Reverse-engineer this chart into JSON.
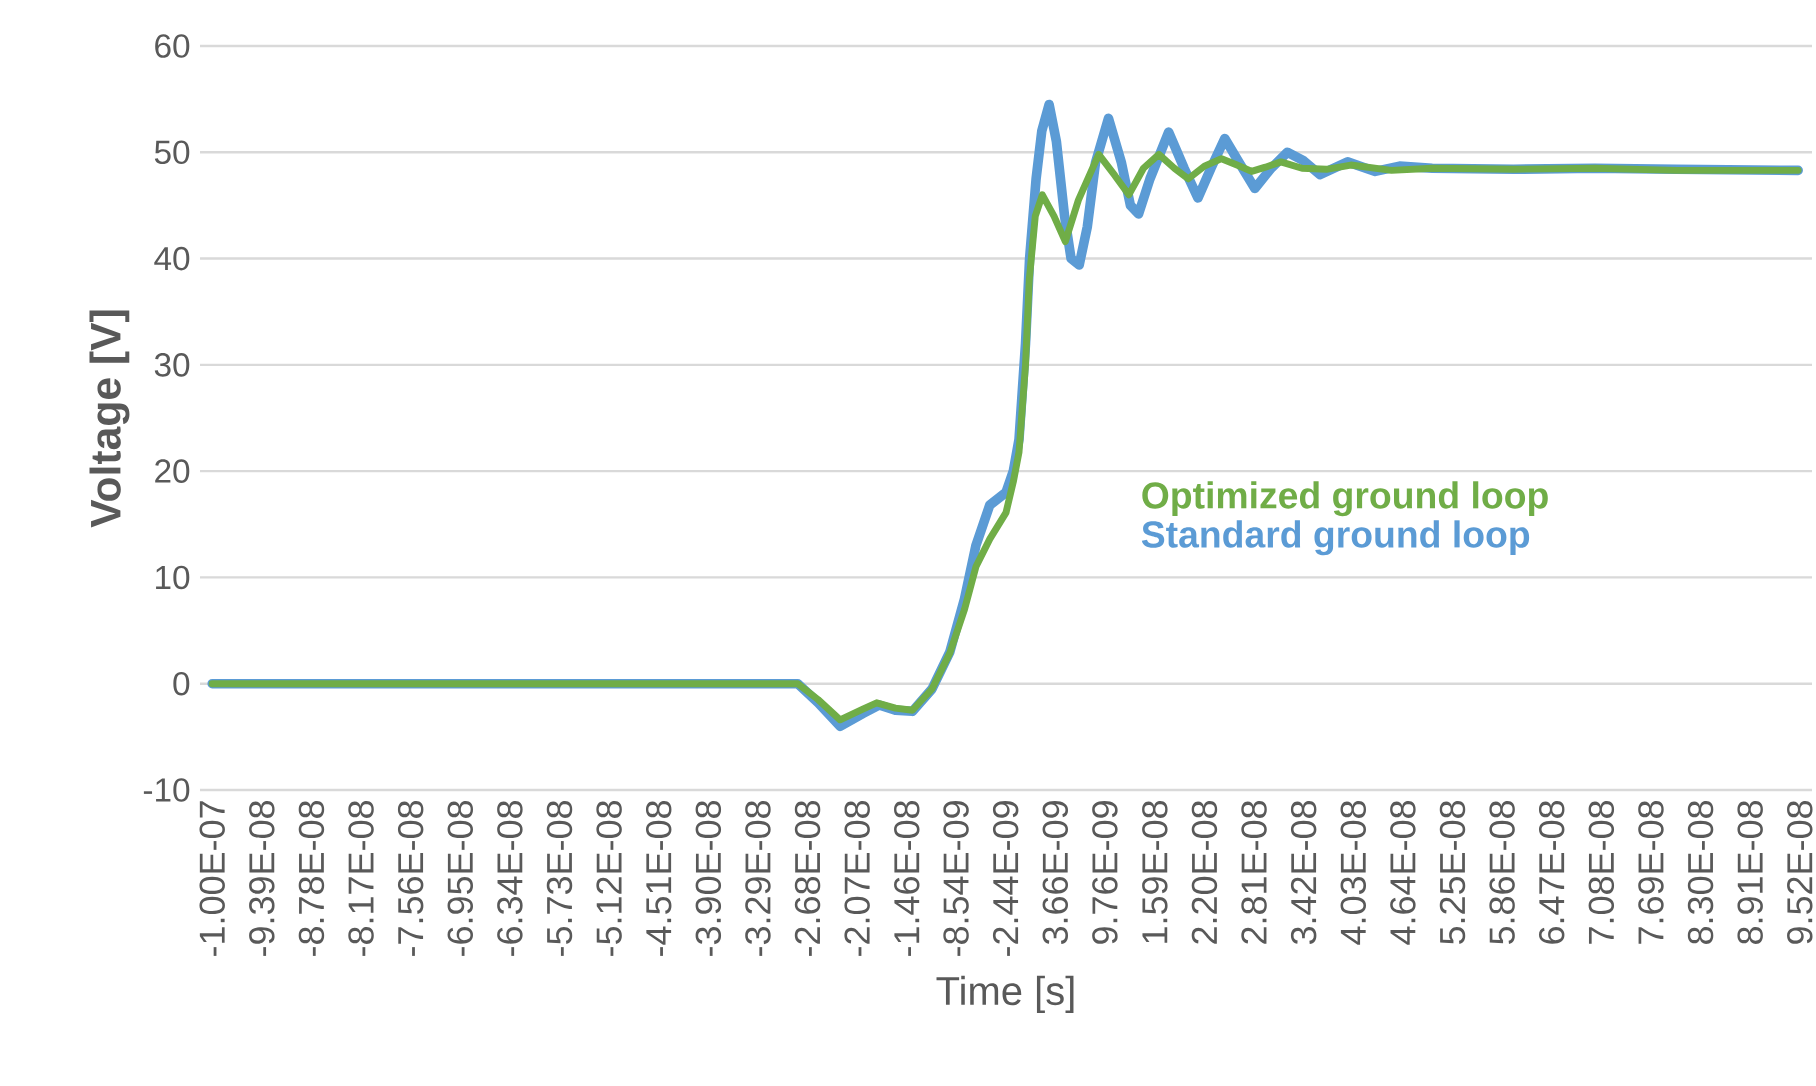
{
  "chart_data": {
    "type": "line",
    "xlabel": "Time [s]",
    "ylabel": "Voltage [V]",
    "xlim": [
      -1.015e-07,
      9.67e-08
    ],
    "ylim": [
      -10,
      60
    ],
    "yticks": [
      -10,
      0,
      10,
      20,
      30,
      40,
      50,
      60
    ],
    "xticks": [
      {
        "value": -1e-07,
        "label": "-1.00E-07"
      },
      {
        "value": -9.39e-08,
        "label": "-9.39E-08"
      },
      {
        "value": -8.78e-08,
        "label": "-8.78E-08"
      },
      {
        "value": -8.17e-08,
        "label": "-8.17E-08"
      },
      {
        "value": -7.56e-08,
        "label": "-7.56E-08"
      },
      {
        "value": -6.95e-08,
        "label": "-6.95E-08"
      },
      {
        "value": -6.34e-08,
        "label": "-6.34E-08"
      },
      {
        "value": -5.73e-08,
        "label": "-5.73E-08"
      },
      {
        "value": -5.12e-08,
        "label": "-5.12E-08"
      },
      {
        "value": -4.51e-08,
        "label": "-4.51E-08"
      },
      {
        "value": -3.9e-08,
        "label": "-3.90E-08"
      },
      {
        "value": -3.29e-08,
        "label": "-3.29E-08"
      },
      {
        "value": -2.68e-08,
        "label": "-2.68E-08"
      },
      {
        "value": -2.07e-08,
        "label": "-2.07E-08"
      },
      {
        "value": -1.46e-08,
        "label": "-1.46E-08"
      },
      {
        "value": -8.54e-09,
        "label": "-8.54E-09"
      },
      {
        "value": -2.44e-09,
        "label": "-2.44E-09"
      },
      {
        "value": 3.66e-09,
        "label": "3.66E-09"
      },
      {
        "value": 9.76e-09,
        "label": "9.76E-09"
      },
      {
        "value": 1.59e-08,
        "label": "1.59E-08"
      },
      {
        "value": 2.2e-08,
        "label": "2.20E-08"
      },
      {
        "value": 2.81e-08,
        "label": "2.81E-08"
      },
      {
        "value": 3.42e-08,
        "label": "3.42E-08"
      },
      {
        "value": 4.03e-08,
        "label": "4.03E-08"
      },
      {
        "value": 4.64e-08,
        "label": "4.64E-08"
      },
      {
        "value": 5.25e-08,
        "label": "5.25E-08"
      },
      {
        "value": 5.86e-08,
        "label": "5.86E-08"
      },
      {
        "value": 6.47e-08,
        "label": "6.47E-08"
      },
      {
        "value": 7.08e-08,
        "label": "7.08E-08"
      },
      {
        "value": 7.69e-08,
        "label": "7.69E-08"
      },
      {
        "value": 8.3e-08,
        "label": "8.30E-08"
      },
      {
        "value": 8.91e-08,
        "label": "8.91E-08"
      },
      {
        "value": 9.52e-08,
        "label": "9.52E-08"
      }
    ],
    "grid": "y",
    "legend": "right",
    "marker": "none",
    "line_style": "solid",
    "series": [
      {
        "name": "Optimized ground loop",
        "color": "#70ad47",
        "x": [
          -1e-07,
          -2.8e-08,
          -2.55e-08,
          -2.28e-08,
          -2e-08,
          -1.83e-08,
          -1.6e-08,
          -1.39e-08,
          -1.15e-08,
          -9.3e-09,
          -7.5e-09,
          -6.1e-09,
          -4.4e-09,
          -2.4e-09,
          -1.5e-09,
          -8e-10,
          0,
          4.6e-10,
          1.2e-09,
          2.07e-09,
          3.5e-09,
          4.9e-09,
          6.5e-09,
          9e-09,
          1.1e-08,
          1.27e-08,
          1.45e-08,
          1.64e-08,
          1.83e-08,
          2e-08,
          2.2e-08,
          2.41e-08,
          2.6e-08,
          2.78e-08,
          2.95e-08,
          3.14e-08,
          3.4e-08,
          3.7e-08,
          4e-08,
          4.5e-08,
          5e-08,
          6e-08,
          7e-08,
          8e-08,
          9.5e-08
        ],
        "values": [
          0,
          0,
          -1.5,
          -3.4,
          -2.4,
          -1.8,
          -2.3,
          -2.5,
          -0.5,
          2.9,
          7,
          11,
          13.6,
          16.1,
          19,
          21.8,
          30,
          38,
          44,
          46,
          44,
          41.6,
          45.5,
          49.8,
          47.8,
          46,
          48.5,
          49.8,
          48.5,
          47.5,
          48.7,
          49.4,
          48.8,
          48.2,
          48.6,
          49.1,
          48.5,
          48.4,
          48.8,
          48.3,
          48.5,
          48.4,
          48.5,
          48.3,
          48.3
        ]
      },
      {
        "name": "Standard ground loop",
        "color": "#5b9bd5",
        "x": [
          -1e-07,
          -2.8e-08,
          -2.55e-08,
          -2.28e-08,
          -2e-08,
          -1.8e-08,
          -1.6e-08,
          -1.39e-08,
          -1.15e-08,
          -9.3e-09,
          -7.5e-09,
          -6.1e-09,
          -4.4e-09,
          -2.4e-09,
          -1.5e-09,
          -8e-10,
          0,
          5e-10,
          1.3e-09,
          2e-09,
          2.9e-09,
          3.8e-09,
          4.8e-09,
          5.6e-09,
          6.6e-09,
          7.6e-09,
          8.6e-09,
          1.02e-08,
          1.18e-08,
          1.29e-08,
          1.39e-08,
          1.53e-08,
          1.76e-08,
          1.95e-08,
          2.12e-08,
          2.28e-08,
          2.45e-08,
          2.63e-08,
          2.82e-08,
          3.02e-08,
          3.22e-08,
          3.42e-08,
          3.62e-08,
          3.96e-08,
          4.3e-08,
          4.6e-08,
          5e-08,
          6e-08,
          7e-08,
          8e-08,
          9.5e-08
        ],
        "values": [
          0,
          0,
          -1.8,
          -4,
          -2.8,
          -2,
          -2.5,
          -2.6,
          -0.5,
          3,
          8,
          13,
          16.8,
          18,
          20,
          23,
          32,
          40,
          47.5,
          52,
          54.5,
          51,
          44,
          40,
          39.4,
          43,
          49,
          53.2,
          49,
          45,
          44.2,
          47.5,
          51.9,
          48.5,
          45.7,
          48.5,
          51.3,
          49,
          46.6,
          48.5,
          50,
          49.2,
          47.9,
          49.1,
          48.2,
          48.7,
          48.5,
          48.4,
          48.5,
          48.4,
          48.3
        ]
      }
    ]
  }
}
